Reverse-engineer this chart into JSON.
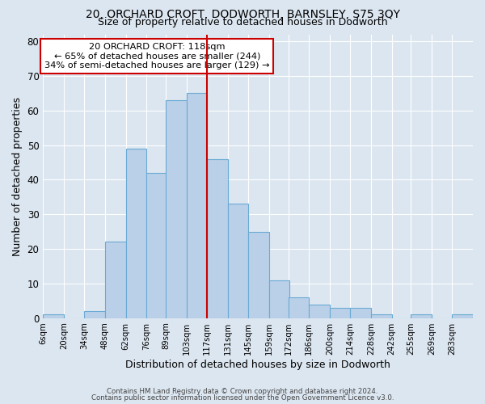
{
  "title1": "20, ORCHARD CROFT, DODWORTH, BARNSLEY, S75 3QY",
  "title2": "Size of property relative to detached houses in Dodworth",
  "xlabel": "Distribution of detached houses by size in Dodworth",
  "ylabel": "Number of detached properties",
  "bin_labels": [
    "6sqm",
    "20sqm",
    "34sqm",
    "48sqm",
    "62sqm",
    "76sqm",
    "89sqm",
    "103sqm",
    "117sqm",
    "131sqm",
    "145sqm",
    "159sqm",
    "172sqm",
    "186sqm",
    "200sqm",
    "214sqm",
    "228sqm",
    "242sqm",
    "255sqm",
    "269sqm",
    "283sqm"
  ],
  "bin_left_edges": [
    6,
    20,
    34,
    48,
    62,
    76,
    89,
    103,
    117,
    131,
    145,
    159,
    172,
    186,
    200,
    214,
    228,
    242,
    255,
    269,
    283
  ],
  "bin_width": 14,
  "bar_heights": [
    1,
    0,
    2,
    22,
    49,
    42,
    63,
    65,
    46,
    33,
    25,
    11,
    6,
    4,
    3,
    3,
    1,
    0,
    1,
    0,
    1
  ],
  "bar_color": "#bad0e8",
  "bar_edge_color": "#6aaad4",
  "vline_x": 117,
  "vline_color": "#cc0000",
  "annotation_line1": "20 ORCHARD CROFT: 118sqm",
  "annotation_line2": "← 65% of detached houses are smaller (244)",
  "annotation_line3": "34% of semi-detached houses are larger (129) →",
  "annotation_box_color": "#ffffff",
  "annotation_border_color": "#cc0000",
  "ylim": [
    0,
    82
  ],
  "yticks": [
    0,
    10,
    20,
    30,
    40,
    50,
    60,
    70,
    80
  ],
  "xlim_left": 6,
  "xlim_right": 297,
  "footer1": "Contains HM Land Registry data © Crown copyright and database right 2024.",
  "footer2": "Contains public sector information licensed under the Open Government Licence v3.0.",
  "background_color": "#dce6f0",
  "plot_background": "#dce6f0"
}
